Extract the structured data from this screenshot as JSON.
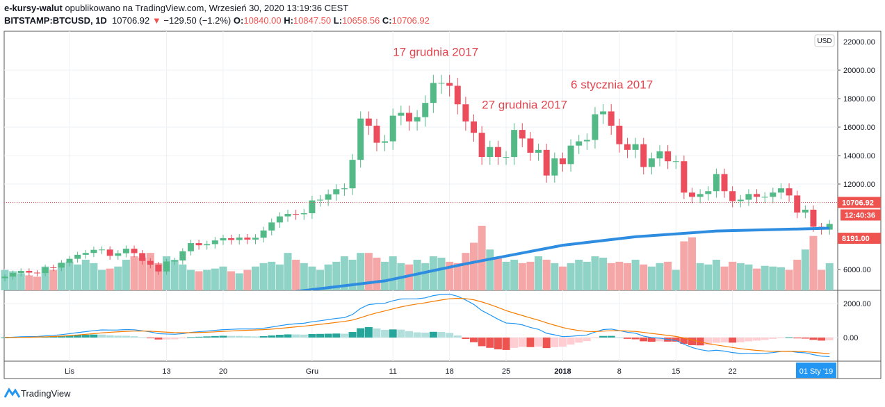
{
  "header": {
    "author": "e-kursy-walut",
    "published": "opublikowano na TradingView.com, Wrzesień 30, 2020 13:19:36 CEST",
    "symbol": "BITSTAMP:BTCUSD, 1D",
    "last": "10706.92",
    "change": "−129.50 (−1.2%)",
    "o_label": "O:",
    "o": "10840.00",
    "h_label": "H:",
    "h": "10847.50",
    "l_label": "L:",
    "l": "10658.56",
    "c_label": "C:",
    "c": "10706.92"
  },
  "footer": {
    "brand": "TradingView"
  },
  "colors": {
    "up": "#26a69a",
    "down": "#ef5350",
    "up_candle": "#53b987",
    "down_candle": "#eb4d5c",
    "ma": "#2e8de0",
    "macd": "#2196f3",
    "signal": "#f57c00",
    "annotation": "#e2454f"
  },
  "chart_data": {
    "type": "candlestick",
    "start_date": "2017-10-24",
    "currency": "USD",
    "price_ticks": [
      "20000.00",
      "18000.00",
      "16000.00",
      "14000.00",
      "12000.00",
      "6000.00"
    ],
    "price_tick_values": [
      20000,
      18000,
      16000,
      14000,
      12000,
      6000
    ],
    "top_tick_partial": "22000.00",
    "macd_ticks": [
      "2000.00",
      "0.00"
    ],
    "macd_tick_values": [
      2000,
      0
    ],
    "x_ticks": [
      {
        "label": "Lis",
        "date": "2017-11-01"
      },
      {
        "label": "13",
        "date": "2017-11-13"
      },
      {
        "label": "20",
        "date": "2017-11-20"
      },
      {
        "label": "Gru",
        "date": "2017-12-01"
      },
      {
        "label": "11",
        "date": "2017-12-11"
      },
      {
        "label": "18",
        "date": "2017-12-18"
      },
      {
        "label": "25",
        "date": "2017-12-25"
      },
      {
        "label": "2018",
        "date": "2018-01-01"
      },
      {
        "label": "8",
        "date": "2018-01-08"
      },
      {
        "label": "15",
        "date": "2018-01-15"
      },
      {
        "label": "22",
        "date": "2018-01-22"
      }
    ],
    "close": [
      5500,
      5750,
      5900,
      5780,
      5750,
      6150,
      6130,
      6470,
      6750,
      7030,
      7160,
      7380,
      7400,
      6960,
      7140,
      7460,
      7150,
      6600,
      6340,
      5860,
      6560,
      6630,
      7280,
      7850,
      7700,
      7780,
      8040,
      8200,
      8070,
      8240,
      8100,
      8230,
      8740,
      9300,
      9730,
      9900,
      9880,
      9950,
      10850,
      10900,
      11280,
      11640,
      11700,
      13700,
      16600,
      16100,
      14900,
      15000,
      16800,
      17000,
      16400,
      16700,
      17700,
      19100,
      19100,
      18900,
      17600,
      16400,
      15600,
      13900,
      14600,
      13900,
      13900,
      15800,
      15200,
      14200,
      14400,
      12600,
      13800,
      13400,
      14700,
      15000,
      15100,
      16900,
      17100,
      16100,
      14800,
      14400,
      14800,
      13200,
      13800,
      14300,
      13600,
      13600,
      11400,
      11100,
      11300,
      11500,
      12700,
      11500,
      10800,
      10900,
      11300,
      11100,
      11100,
      11400,
      11700,
      11200,
      10000,
      10200,
      9000,
      8800,
      9200
    ],
    "volume": [
      30,
      28,
      25,
      22,
      20,
      35,
      30,
      40,
      42,
      38,
      45,
      40,
      30,
      32,
      35,
      45,
      50,
      48,
      55,
      40,
      50,
      45,
      38,
      30,
      28,
      30,
      32,
      35,
      28,
      25,
      30,
      35,
      40,
      42,
      38,
      55,
      45,
      40,
      35,
      30,
      38,
      42,
      50,
      45,
      55,
      55,
      48,
      42,
      50,
      40,
      38,
      45,
      40,
      50,
      48,
      42,
      40,
      55,
      70,
      95,
      60,
      48,
      42,
      45,
      40,
      42,
      50,
      45,
      40,
      35,
      40,
      45,
      42,
      50,
      48,
      40,
      42,
      40,
      45,
      38,
      35,
      40,
      42,
      30,
      72,
      78,
      40,
      38,
      45,
      35,
      42,
      40,
      38,
      32,
      36,
      35,
      34,
      30,
      45,
      60,
      80,
      30,
      40
    ],
    "ma_200": [
      {
        "date": "2017-11-29",
        "value": 4450
      },
      {
        "date": "2017-12-10",
        "value": 5200
      },
      {
        "date": "2017-12-20",
        "value": 6400
      },
      {
        "date": "2018-01-01",
        "value": 7700
      },
      {
        "date": "2018-01-10",
        "value": 8300
      },
      {
        "date": "2018-01-20",
        "value": 8700
      },
      {
        "date": "2018-02-03",
        "value": 8900
      }
    ],
    "annotations": [
      {
        "text": "17 grudnia 2017",
        "date": "2017-12-11",
        "price": 21000
      },
      {
        "text": "27 grudnia 2017",
        "date": "2017-12-22",
        "price": 17300
      },
      {
        "text": "6 stycznia 2017",
        "date": "2018-01-02",
        "price": 18700
      }
    ],
    "last_price_label": "10706.92",
    "countdown_label": "12:40:36",
    "crosshair_price_label": "8191.00",
    "crosshair_date_label": "01 Sty '19"
  }
}
